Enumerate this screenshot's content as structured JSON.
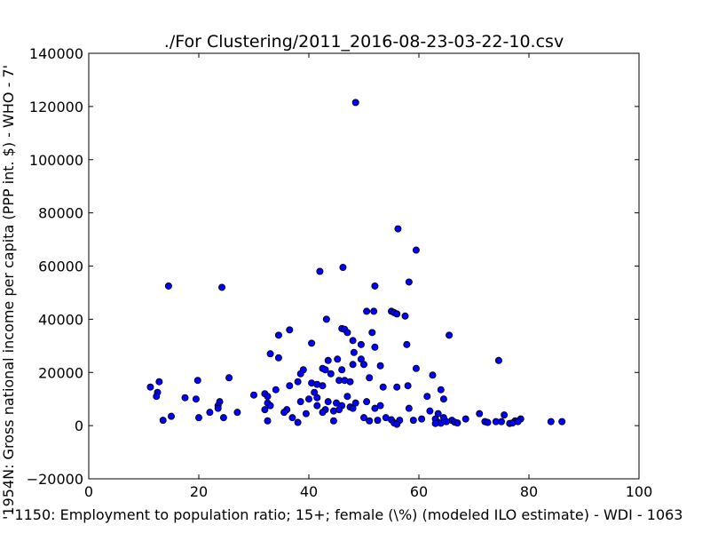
{
  "chart_data": {
    "type": "scatter",
    "title": "./For Clustering/2011_2016-08-23-03-22-10.csv",
    "xlabel": "'1150: Employment to population ratio; 15+; female (\\%)  (modeled ILO estimate) - WDI - 1063",
    "ylabel": "'1954N: Gross national income per capita (PPP int. $) - WHO - 7'",
    "xlim": [
      0,
      100
    ],
    "ylim": [
      -20000,
      140000
    ],
    "xticks": [
      0,
      20,
      40,
      60,
      80,
      100
    ],
    "yticks": [
      -20000,
      0,
      20000,
      40000,
      60000,
      80000,
      100000,
      120000,
      140000
    ],
    "grid": false,
    "marker_color": "#0000ff",
    "marker_edge": "#000000",
    "points": [
      [
        48.5,
        121500
      ],
      [
        56.2,
        74000
      ],
      [
        59.5,
        66000
      ],
      [
        46.2,
        59500
      ],
      [
        42.0,
        58000
      ],
      [
        58.2,
        54000
      ],
      [
        14.5,
        52500
      ],
      [
        24.2,
        52000
      ],
      [
        52.0,
        52500
      ],
      [
        50.5,
        43000
      ],
      [
        51.8,
        43000
      ],
      [
        55.0,
        43000
      ],
      [
        55.5,
        42500
      ],
      [
        56.0,
        42000
      ],
      [
        57.5,
        41200
      ],
      [
        43.2,
        40000
      ],
      [
        46.0,
        36500
      ],
      [
        36.5,
        36000
      ],
      [
        46.5,
        36200
      ],
      [
        47.0,
        35000
      ],
      [
        51.5,
        35000
      ],
      [
        34.5,
        34000
      ],
      [
        65.5,
        34000
      ],
      [
        48.0,
        32000
      ],
      [
        40.5,
        31000
      ],
      [
        57.8,
        30500
      ],
      [
        49.5,
        30500
      ],
      [
        52.0,
        29500
      ],
      [
        48.2,
        27500
      ],
      [
        33.0,
        27000
      ],
      [
        34.5,
        25500
      ],
      [
        74.5,
        24500
      ],
      [
        43.5,
        24500
      ],
      [
        45.2,
        25000
      ],
      [
        49.5,
        25000
      ],
      [
        48.0,
        23000
      ],
      [
        53.0,
        22500
      ],
      [
        50.0,
        23000
      ],
      [
        42.5,
        21500
      ],
      [
        39.0,
        21000
      ],
      [
        46.0,
        21000
      ],
      [
        43.0,
        21000
      ],
      [
        59.5,
        21500
      ],
      [
        38.5,
        19500
      ],
      [
        44.0,
        19500
      ],
      [
        62.5,
        19000
      ],
      [
        25.5,
        18000
      ],
      [
        51.0,
        18000
      ],
      [
        12.8,
        16500
      ],
      [
        19.8,
        17000
      ],
      [
        38.0,
        16500
      ],
      [
        40.5,
        16000
      ],
      [
        41.5,
        15500
      ],
      [
        45.5,
        17000
      ],
      [
        46.5,
        17000
      ],
      [
        47.5,
        16500
      ],
      [
        36.5,
        15000
      ],
      [
        42.5,
        15000
      ],
      [
        11.2,
        14500
      ],
      [
        53.5,
        14500
      ],
      [
        56.0,
        14500
      ],
      [
        58.0,
        15000
      ],
      [
        34.0,
        13500
      ],
      [
        41.0,
        12500
      ],
      [
        64.0,
        13500
      ],
      [
        12.5,
        12500
      ],
      [
        32.0,
        12000
      ],
      [
        30.0,
        11500
      ],
      [
        12.3,
        11000
      ],
      [
        32.5,
        11000
      ],
      [
        47.0,
        11000
      ],
      [
        61.5,
        11000
      ],
      [
        17.5,
        10500
      ],
      [
        19.5,
        10000
      ],
      [
        40.0,
        10000
      ],
      [
        41.5,
        10500
      ],
      [
        64.5,
        10000
      ],
      [
        23.8,
        9000
      ],
      [
        32.5,
        8500
      ],
      [
        38.5,
        9000
      ],
      [
        43.5,
        9000
      ],
      [
        45.0,
        8500
      ],
      [
        48.5,
        8500
      ],
      [
        50.5,
        9000
      ],
      [
        23.5,
        7500
      ],
      [
        33.0,
        7500
      ],
      [
        41.5,
        7500
      ],
      [
        46.0,
        7500
      ],
      [
        47.5,
        7000
      ],
      [
        53.0,
        7500
      ],
      [
        58.2,
        6500
      ],
      [
        23.5,
        6500
      ],
      [
        32.0,
        6000
      ],
      [
        36.0,
        6000
      ],
      [
        43.0,
        6000
      ],
      [
        48.0,
        6500
      ],
      [
        52.0,
        6500
      ],
      [
        62.0,
        5500
      ],
      [
        22.0,
        5000
      ],
      [
        27.0,
        5000
      ],
      [
        35.5,
        5000
      ],
      [
        39.5,
        4500
      ],
      [
        42.5,
        5000
      ],
      [
        44.5,
        5500
      ],
      [
        45.5,
        6000
      ],
      [
        63.5,
        4500
      ],
      [
        71.0,
        4500
      ],
      [
        75.5,
        4000
      ],
      [
        15.0,
        3500
      ],
      [
        20.0,
        3000
      ],
      [
        24.5,
        3000
      ],
      [
        37.0,
        3000
      ],
      [
        50.0,
        3000
      ],
      [
        54.0,
        3000
      ],
      [
        64.5,
        3000
      ],
      [
        63.0,
        2500
      ],
      [
        60.5,
        2500
      ],
      [
        68.5,
        2500
      ],
      [
        13.5,
        2000
      ],
      [
        32.5,
        1800
      ],
      [
        44.5,
        1800
      ],
      [
        51.0,
        1800
      ],
      [
        52.5,
        2000
      ],
      [
        55.0,
        2200
      ],
      [
        56.5,
        2000
      ],
      [
        59.0,
        2000
      ],
      [
        66.0,
        2000
      ],
      [
        72.0,
        1500
      ],
      [
        74.0,
        1500
      ],
      [
        77.5,
        1800
      ],
      [
        78.5,
        2500
      ],
      [
        38.0,
        1200
      ],
      [
        55.5,
        1000
      ],
      [
        63.5,
        1200
      ],
      [
        64.0,
        900
      ],
      [
        65.0,
        1500
      ],
      [
        66.5,
        1300
      ],
      [
        67.0,
        1000
      ],
      [
        72.5,
        1200
      ],
      [
        75.0,
        1500
      ],
      [
        76.5,
        800
      ],
      [
        77.0,
        1000
      ],
      [
        78.0,
        1500
      ],
      [
        84.0,
        1500
      ],
      [
        86.0,
        1500
      ],
      [
        63.0,
        800
      ],
      [
        56.0,
        500
      ]
    ]
  }
}
